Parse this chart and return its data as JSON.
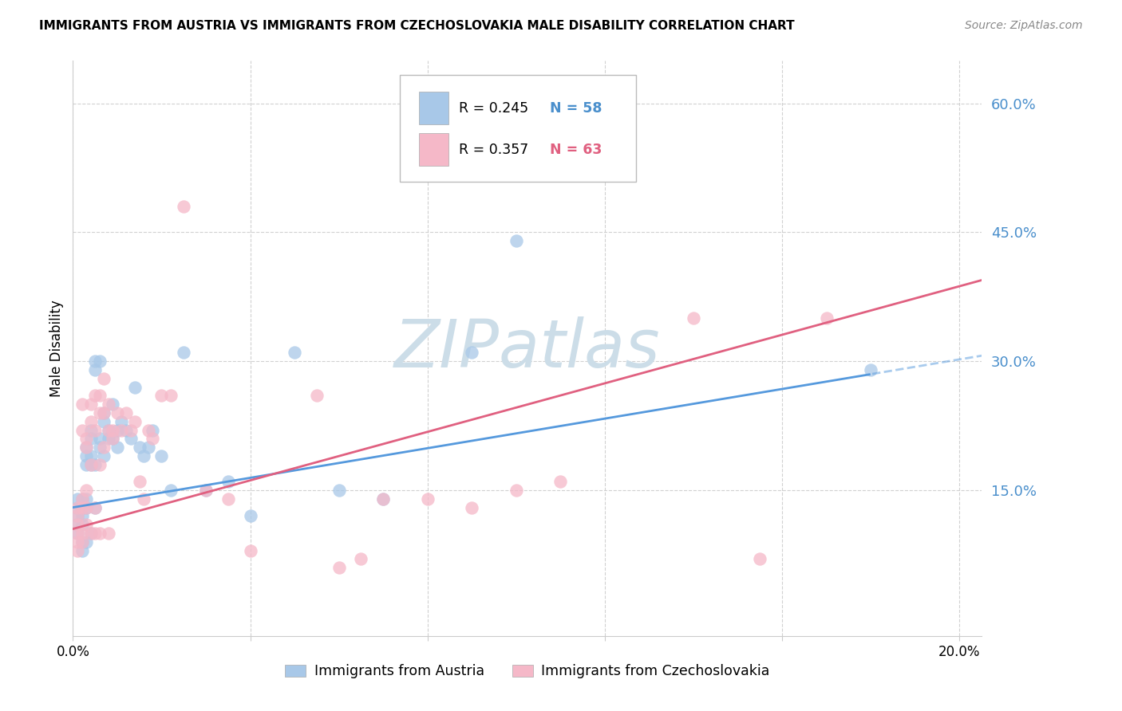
{
  "title": "IMMIGRANTS FROM AUSTRIA VS IMMIGRANTS FROM CZECHOSLOVAKIA MALE DISABILITY CORRELATION CHART",
  "source": "Source: ZipAtlas.com",
  "ylabel": "Male Disability",
  "xlim": [
    0.0,
    0.205
  ],
  "ylim": [
    -0.02,
    0.65
  ],
  "ytick_positions": [
    0.15,
    0.3,
    0.45,
    0.6
  ],
  "ytick_labels": [
    "15.0%",
    "30.0%",
    "45.0%",
    "60.0%"
  ],
  "xtick_positions": [
    0.0,
    0.04,
    0.08,
    0.12,
    0.16,
    0.2
  ],
  "xtick_labels": [
    "0.0%",
    "",
    "",
    "",
    "",
    "20.0%"
  ],
  "austria_color": "#a8c8e8",
  "austria_line_color": "#5599dd",
  "czechoslovakia_color": "#f5b8c8",
  "czechoslovakia_line_color": "#e06080",
  "austria_R": 0.245,
  "austria_N": 58,
  "czechoslovakia_R": 0.357,
  "czechoslovakia_N": 63,
  "watermark_color": "#ccdde8",
  "austria_x": [
    0.001,
    0.001,
    0.001,
    0.001,
    0.001,
    0.002,
    0.002,
    0.002,
    0.002,
    0.002,
    0.002,
    0.003,
    0.003,
    0.003,
    0.003,
    0.003,
    0.003,
    0.004,
    0.004,
    0.004,
    0.004,
    0.004,
    0.005,
    0.005,
    0.005,
    0.005,
    0.006,
    0.006,
    0.006,
    0.007,
    0.007,
    0.007,
    0.008,
    0.008,
    0.009,
    0.009,
    0.01,
    0.01,
    0.011,
    0.012,
    0.013,
    0.014,
    0.015,
    0.016,
    0.017,
    0.018,
    0.02,
    0.022,
    0.025,
    0.03,
    0.035,
    0.04,
    0.05,
    0.06,
    0.07,
    0.09,
    0.1,
    0.18
  ],
  "austria_y": [
    0.13,
    0.14,
    0.12,
    0.11,
    0.1,
    0.14,
    0.13,
    0.12,
    0.11,
    0.09,
    0.08,
    0.2,
    0.19,
    0.18,
    0.14,
    0.13,
    0.09,
    0.22,
    0.21,
    0.19,
    0.18,
    0.1,
    0.3,
    0.29,
    0.18,
    0.13,
    0.3,
    0.21,
    0.2,
    0.24,
    0.23,
    0.19,
    0.22,
    0.21,
    0.25,
    0.21,
    0.22,
    0.2,
    0.23,
    0.22,
    0.21,
    0.27,
    0.2,
    0.19,
    0.2,
    0.22,
    0.19,
    0.15,
    0.31,
    0.15,
    0.16,
    0.12,
    0.31,
    0.15,
    0.14,
    0.31,
    0.44,
    0.29
  ],
  "czechoslovakia_x": [
    0.001,
    0.001,
    0.001,
    0.001,
    0.001,
    0.001,
    0.002,
    0.002,
    0.002,
    0.002,
    0.002,
    0.002,
    0.003,
    0.003,
    0.003,
    0.003,
    0.003,
    0.004,
    0.004,
    0.004,
    0.004,
    0.005,
    0.005,
    0.005,
    0.005,
    0.006,
    0.006,
    0.006,
    0.006,
    0.007,
    0.007,
    0.007,
    0.008,
    0.008,
    0.008,
    0.009,
    0.009,
    0.01,
    0.011,
    0.012,
    0.013,
    0.014,
    0.015,
    0.016,
    0.017,
    0.018,
    0.02,
    0.022,
    0.025,
    0.03,
    0.035,
    0.04,
    0.055,
    0.06,
    0.065,
    0.07,
    0.08,
    0.09,
    0.1,
    0.11,
    0.14,
    0.155,
    0.17
  ],
  "czechoslovakia_y": [
    0.13,
    0.12,
    0.11,
    0.1,
    0.09,
    0.08,
    0.25,
    0.22,
    0.14,
    0.13,
    0.1,
    0.09,
    0.21,
    0.2,
    0.15,
    0.13,
    0.11,
    0.25,
    0.23,
    0.18,
    0.1,
    0.26,
    0.22,
    0.13,
    0.1,
    0.26,
    0.24,
    0.18,
    0.1,
    0.28,
    0.24,
    0.2,
    0.25,
    0.22,
    0.1,
    0.22,
    0.21,
    0.24,
    0.22,
    0.24,
    0.22,
    0.23,
    0.16,
    0.14,
    0.22,
    0.21,
    0.26,
    0.26,
    0.48,
    0.15,
    0.14,
    0.08,
    0.26,
    0.06,
    0.07,
    0.14,
    0.14,
    0.13,
    0.15,
    0.16,
    0.35,
    0.07,
    0.35
  ]
}
